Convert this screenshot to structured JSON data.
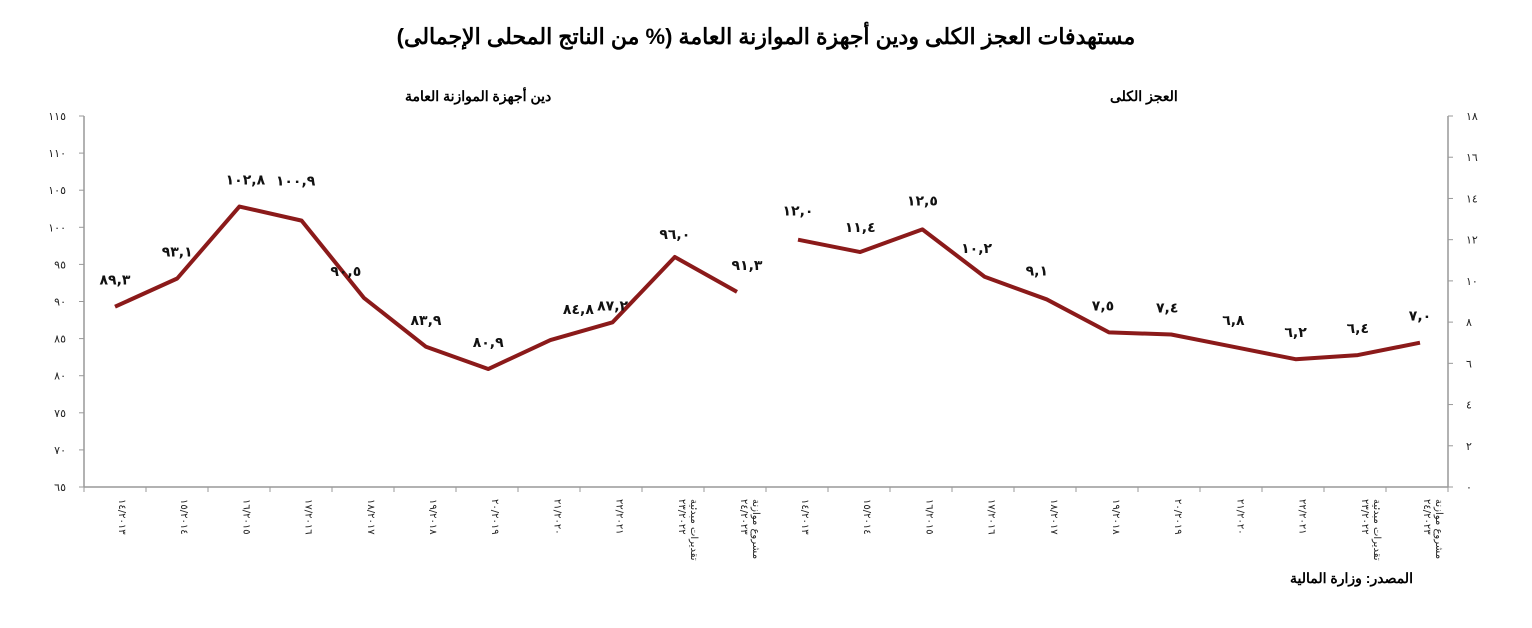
{
  "title": "مستهدفات العجز الكلى ودين أجهزة الموازنة العامة (% من الناتج المحلى الإجمالى)",
  "source": "المصدر: وزارة المالية",
  "colors": {
    "line": "#8b1a1a",
    "axis": "#999999"
  },
  "chart_data": [
    {
      "type": "line",
      "title": "دين أجهزة الموازنة العامة",
      "categories": [
        "٢٠١٣/١٤",
        "٢٠١٤/١٥",
        "٢٠١٥/١٦",
        "٢٠١٦/١٧",
        "٢٠١٧/١٨",
        "٢٠١٨/١٩",
        "٢٠١٩/٢٠",
        "٢٠٢٠/٢١",
        "٢٠٢١/٢٢",
        "٢٠٢٢/٢٣ تقديرات مبدئية",
        "٢٠٢٣/٢٤ مشروع موازنة"
      ],
      "values": [
        89.3,
        93.1,
        102.8,
        100.9,
        90.5,
        83.9,
        80.9,
        84.8,
        87.2,
        96.0,
        91.3
      ],
      "value_labels": [
        "٨٩,٣",
        "٩٣,١",
        "١٠٢,٨",
        "١٠٠,٩",
        "٩٠,٥",
        "٨٣,٩",
        "٨٠,٩",
        "٨٤,٨",
        "٨٧,٢",
        "٩٦,٠",
        "٩١,٣"
      ],
      "ylabel": "",
      "xlabel": "",
      "ylim": [
        65,
        115
      ],
      "yticks": [
        65,
        70,
        75,
        80,
        85,
        90,
        95,
        100,
        105,
        110,
        115
      ],
      "ytick_labels": [
        "٦٥",
        "٧٠",
        "٧٥",
        "٨٠",
        "٨٥",
        "٩٠",
        "٩٥",
        "١٠٠",
        "١٠٥",
        "١١٠",
        "١١٥"
      ],
      "axis_side": "left",
      "grid": false
    },
    {
      "type": "line",
      "title": "العجز الكلى",
      "categories": [
        "٢٠١٣/١٤",
        "٢٠١٤/١٥",
        "٢٠١٥/١٦",
        "٢٠١٦/١٧",
        "٢٠١٧/١٨",
        "٢٠١٨/١٩",
        "٢٠١٩/٢٠",
        "٢٠٢٠/٢١",
        "٢٠٢١/٢٢",
        "٢٠٢٢/٢٣ تقديرات مبدئية",
        "٢٠٢٣/٢٤ مشروع موازنة"
      ],
      "values": [
        12.0,
        11.4,
        12.5,
        10.2,
        9.1,
        7.5,
        7.4,
        6.8,
        6.2,
        6.4,
        7.0
      ],
      "value_labels": [
        "١٢,٠",
        "١١,٤",
        "١٢,٥",
        "١٠,٢",
        "٩,١",
        "٧,٥",
        "٧,٤",
        "٦,٨",
        "٦,٢",
        "٦,٤",
        "٧,٠"
      ],
      "ylabel": "",
      "xlabel": "",
      "ylim": [
        0,
        18
      ],
      "yticks": [
        0,
        2,
        4,
        6,
        8,
        10,
        12,
        14,
        16,
        18
      ],
      "ytick_labels": [
        "٠",
        "٢",
        "٤",
        "٦",
        "٨",
        "١٠",
        "١٢",
        "١٤",
        "١٦",
        "١٨"
      ],
      "axis_side": "right",
      "grid": false
    }
  ],
  "category_display": [
    {
      "line1": "١٤/٢٠١٣",
      "line2": ""
    },
    {
      "line1": "١٥/٢٠١٤",
      "line2": ""
    },
    {
      "line1": "١٦/٢٠١٥",
      "line2": ""
    },
    {
      "line1": "١٧/٢٠١٦",
      "line2": ""
    },
    {
      "line1": "١٨/٢٠١٧",
      "line2": ""
    },
    {
      "line1": "١٩/٢٠١٨",
      "line2": ""
    },
    {
      "line1": "٢٠/٢٠١٩",
      "line2": ""
    },
    {
      "line1": "٢١/٢٠٢٠",
      "line2": ""
    },
    {
      "line1": "٢٢/٢٠٢١",
      "line2": ""
    },
    {
      "line1": "٢٣/٢٠٢٢",
      "line2": "تقديرات مبدئية"
    },
    {
      "line1": "٢٤/٢٠٢٣",
      "line2": "مشروع موازنة"
    }
  ]
}
